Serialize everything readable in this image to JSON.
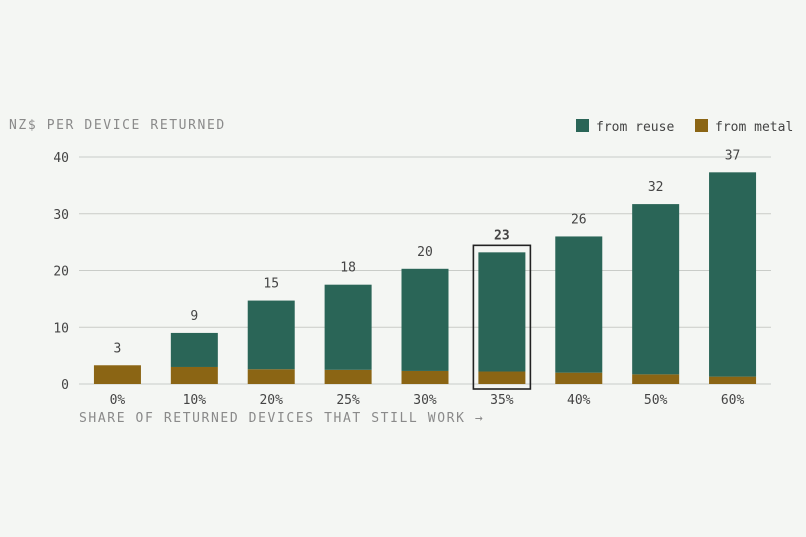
{
  "chart_data": {
    "type": "bar",
    "stacked": true,
    "ylabel": "NZ$ PER DEVICE RETURNED",
    "xlabel": "SHARE OF RETURNED DEVICES THAT STILL WORK →",
    "categories": [
      "0%",
      "10%",
      "20%",
      "25%",
      "30%",
      "35%",
      "40%",
      "50%",
      "60%"
    ],
    "series": [
      {
        "name": "from metal",
        "color": "#8b6514",
        "values": [
          3.3,
          3.0,
          2.6,
          2.5,
          2.3,
          2.2,
          2.0,
          1.7,
          1.3
        ]
      },
      {
        "name": "from reuse",
        "color": "#2a6557",
        "values": [
          0,
          6.0,
          12.1,
          15.0,
          18.0,
          21.0,
          24.0,
          30.0,
          36.0
        ]
      }
    ],
    "totals_labels": [
      "3",
      "9",
      "15",
      "18",
      "20",
      "23",
      "26",
      "32",
      "37"
    ],
    "highlight_index": 5,
    "ylim": [
      0,
      40
    ],
    "yticks": [
      0,
      10,
      20,
      30,
      40
    ],
    "grid": true,
    "legend_position": "top-right",
    "legend_order": [
      "from reuse",
      "from metal"
    ]
  }
}
